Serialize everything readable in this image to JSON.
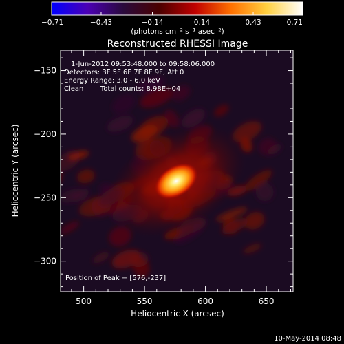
{
  "chart_data": {
    "type": "heatmap",
    "title": "Reconstructed RHESSI Image",
    "xlabel": "Heliocentric X (arcsec)",
    "ylabel": "Heliocentric Y (arcsec)",
    "xlim": [
      481,
      672
    ],
    "ylim": [
      -324,
      -134
    ],
    "x_ticks": [
      500,
      550,
      600,
      650
    ],
    "y_ticks": [
      -150,
      -200,
      -250,
      -300
    ],
    "x_tick_labels": [
      "500",
      "550",
      "600",
      "650"
    ],
    "y_tick_labels": [
      "−150",
      "−200",
      "−250",
      "−300"
    ],
    "annotations": {
      "time_range": "1-Jun-2012 09:53:48.000 to 09:58:06.000",
      "detectors": "Detectors: 3F 5F 6F 7F 8F 9F, Att 0",
      "energy_range": "Energy Range: 3.0 - 6.0 keV",
      "method": "Clean",
      "total_counts": "Total counts: 8.98E+04",
      "peak_position": "Position of Peak = [576,-237]"
    },
    "peak": {
      "x": 576,
      "y": -237
    },
    "colorbar": {
      "min": -0.71,
      "max": 0.71,
      "ticks": [
        -0.71,
        -0.43,
        -0.14,
        0.14,
        0.43,
        0.71
      ],
      "tick_labels": [
        "−0.71",
        "−0.43",
        "−0.14",
        "0.14",
        "0.43",
        "0.71"
      ],
      "units_label": "(photons cm⁻² s⁻¹ asec⁻²)",
      "colors": [
        "#0000ff",
        "#4b00b4",
        "#2a0a3c",
        "#4a0000",
        "#c00000",
        "#ff7000",
        "#ffd040",
        "#ffffff"
      ]
    }
  },
  "footer": {
    "timestamp": "10-May-2014 08:48"
  }
}
